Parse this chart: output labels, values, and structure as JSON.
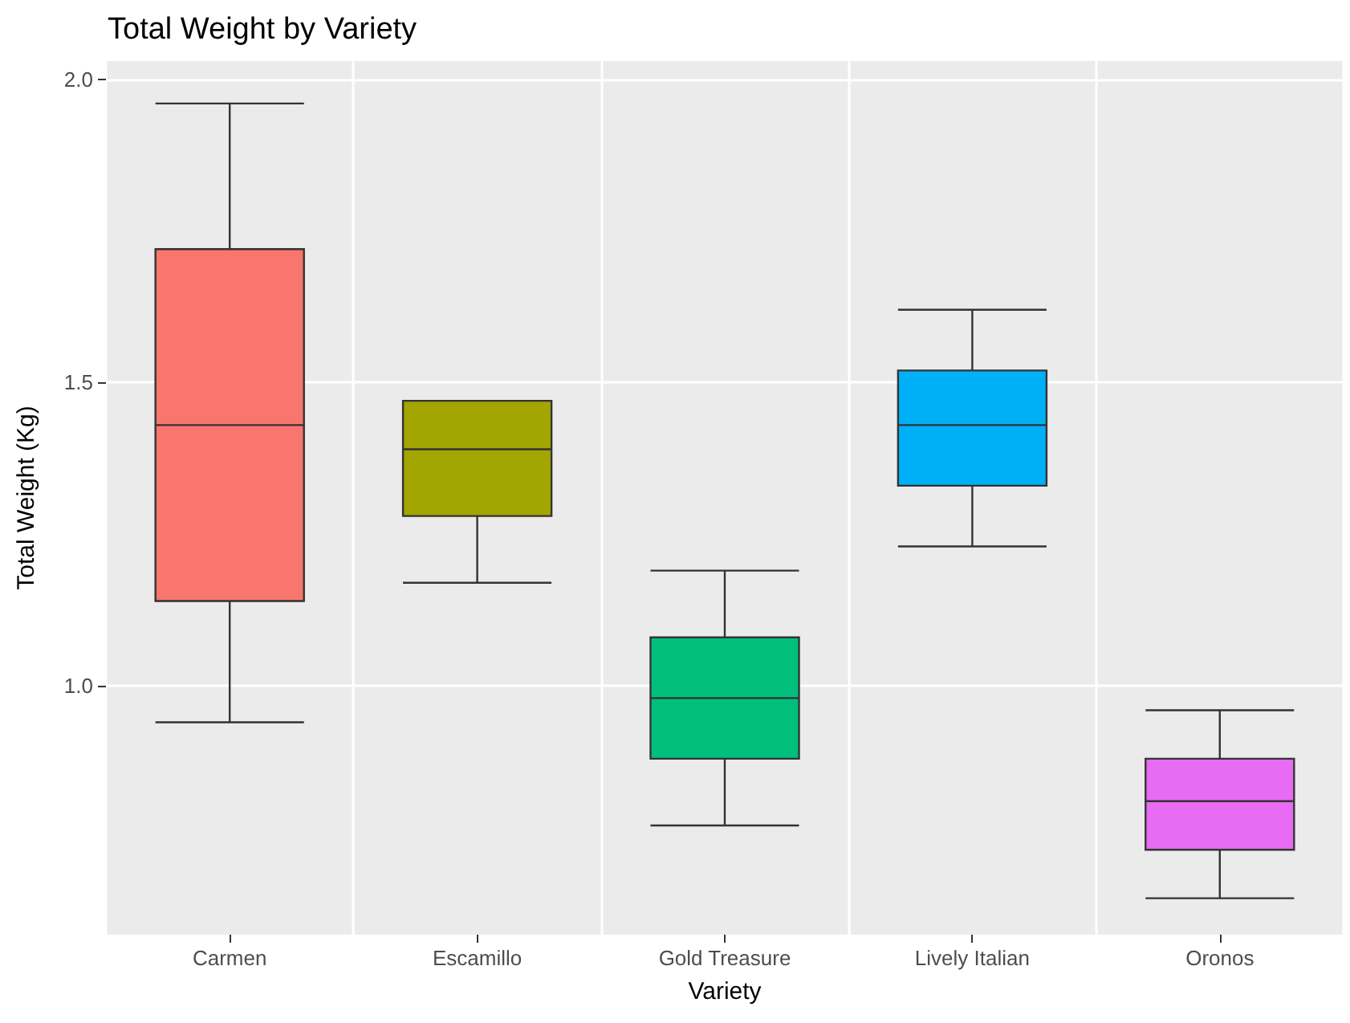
{
  "chart_data": {
    "type": "box",
    "title": "Total Weight by Variety",
    "xlabel": "Variety",
    "ylabel": "Total Weight (Kg)",
    "categories": [
      "Carmen",
      "Escamillo",
      "Gold Treasure",
      "Lively Italian",
      "Oronos"
    ],
    "boxes": [
      {
        "low": 0.94,
        "q1": 1.14,
        "median": 1.43,
        "q3": 1.72,
        "high": 1.96
      },
      {
        "low": 1.17,
        "q1": 1.28,
        "median": 1.39,
        "q3": 1.47,
        "high": 1.47
      },
      {
        "low": 0.77,
        "q1": 0.88,
        "median": 0.98,
        "q3": 1.08,
        "high": 1.19
      },
      {
        "low": 1.23,
        "q1": 1.33,
        "median": 1.43,
        "q3": 1.52,
        "high": 1.62
      },
      {
        "low": 0.65,
        "q1": 0.73,
        "median": 0.81,
        "q3": 0.88,
        "high": 0.96
      }
    ],
    "colors": [
      "#f8766d",
      "#a3a500",
      "#00bf7d",
      "#00b0f6",
      "#e76bf3"
    ],
    "ylim": [
      0.59,
      2.03
    ],
    "yticks": [
      {
        "value": 1,
        "label": "1.0"
      },
      {
        "value": 1.5,
        "label": "1.5"
      },
      {
        "value": 2,
        "label": "2.0"
      }
    ],
    "grid": true
  }
}
